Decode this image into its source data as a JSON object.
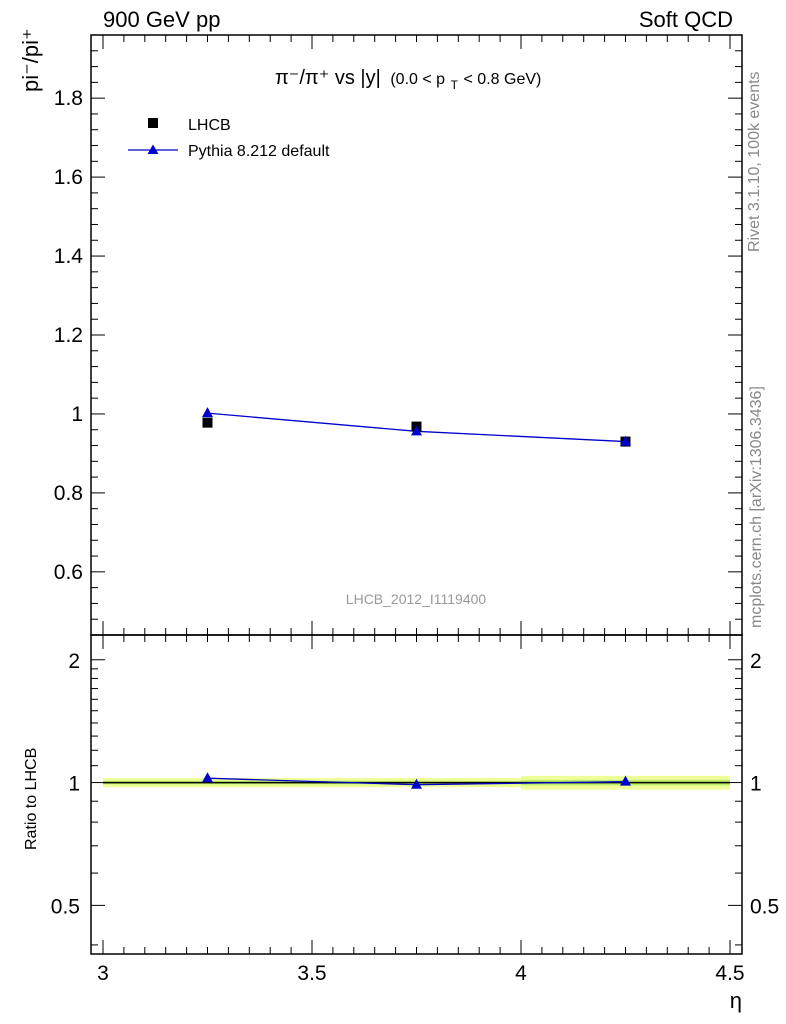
{
  "header": {
    "left": "900 GeV pp",
    "right": "Soft QCD"
  },
  "side": {
    "rivet": "Rivet 3.1.10,  100k events",
    "mcplots": "mcplots.cern.ch [arXiv:1306.3436]"
  },
  "chart_data": {
    "type": "scatter",
    "title": "π⁻/π⁺ vs |y| (0.0 < pT < 0.8 GeV)",
    "title_parts": {
      "main": "π⁻/π⁺ vs |y|",
      "cut_open": "(0.0 < p",
      "cut_sub": "T",
      "cut_close": " < 0.8 GeV)"
    },
    "analysis_label": "LHCB_2012_I1119400",
    "ylabel": "pi⁻/pi⁺",
    "ratio_ylabel": "Ratio to LHCB",
    "xlabel": "η",
    "xlim": [
      3.0,
      4.5
    ],
    "ylim": [
      0.44,
      1.96
    ],
    "ratio_ylim": [
      0.38,
      2.3
    ],
    "x_ticks": [
      "3",
      "3.5",
      "4",
      "4.5"
    ],
    "y_ticks": [
      "0.6",
      "0.8",
      "1",
      "1.2",
      "1.4",
      "1.6",
      "1.8"
    ],
    "ratio_ticks": [
      "0.5",
      "1",
      "2"
    ],
    "x": [
      3.25,
      3.75,
      4.25
    ],
    "series": [
      {
        "name": "LHCB",
        "marker": "square",
        "color": "#000000",
        "values": [
          0.978,
          0.968,
          0.93
        ],
        "xerr_halfwidth": 0.25,
        "rel_unc": [
          0.02,
          0.02,
          0.03
        ]
      },
      {
        "name": "Pythia 8.212 default",
        "marker": "triangle",
        "color": "#0000cc",
        "values": [
          1.002,
          0.956,
          0.93
        ],
        "ratio": [
          1.025,
          0.988,
          1.005
        ]
      }
    ]
  }
}
